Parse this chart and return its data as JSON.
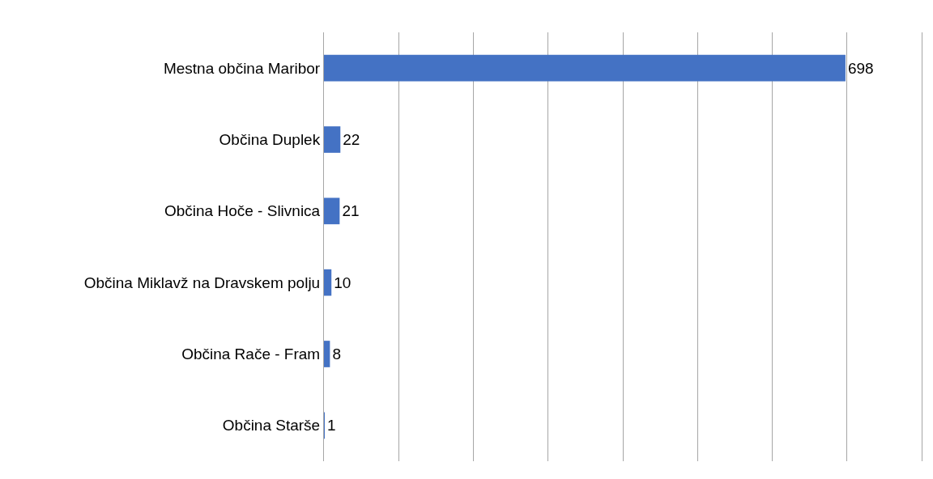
{
  "chart_data": {
    "type": "bar",
    "orientation": "horizontal",
    "categories": [
      "Mestna občina Maribor",
      "Občina Duplek",
      "Občina Hoče - Slivnica",
      "Občina Miklavž na Dravskem polju",
      "Občina Rače - Fram",
      "Občina Starše"
    ],
    "values": [
      698,
      22,
      21,
      10,
      8,
      1
    ],
    "color": "#4472c4",
    "data_labels": true,
    "xlim": [
      0,
      800
    ],
    "xticks": [
      {
        "value": 0,
        "label": null
      },
      {
        "value": 100,
        "label": null
      },
      {
        "value": 200,
        "label": null
      },
      {
        "value": 300,
        "label": null
      },
      {
        "value": 400,
        "label": null
      },
      {
        "value": 500,
        "label": null
      },
      {
        "value": 600,
        "label": null
      },
      {
        "value": 700,
        "label": null
      },
      {
        "value": 800,
        "label": null
      }
    ],
    "grid": "x",
    "tick_labels": "y",
    "legend": false
  }
}
